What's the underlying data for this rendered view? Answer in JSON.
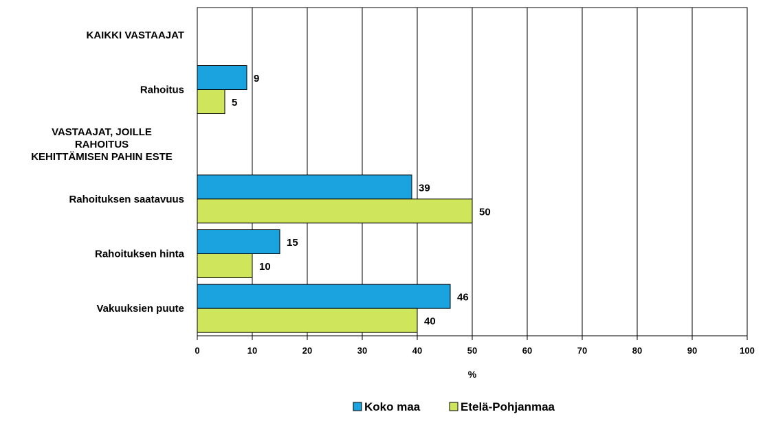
{
  "chart_data": {
    "type": "bar",
    "orientation": "horizontal",
    "categories": [
      "KAIKKI VASTAAJAT",
      "Rahoitus",
      "VASTAAJAT, JOILLE\nRAHOITUS\nKEHITTÄMISEN PAHIN ESTE",
      "Rahoituksen saatavuus",
      "Rahoituksen hinta",
      "Vakuuksien puute"
    ],
    "series": [
      {
        "name": "Koko maa",
        "color": "#1aa3df",
        "values": [
          null,
          9,
          null,
          39,
          15,
          46
        ]
      },
      {
        "name": "Etelä-Pohjanmaa",
        "color": "#cfe65c",
        "values": [
          null,
          5,
          null,
          50,
          10,
          40
        ]
      }
    ],
    "xlabel": "%",
    "xlim": [
      0,
      100
    ],
    "xticks": [
      "0",
      "10",
      "20",
      "30",
      "40",
      "50",
      "60",
      "70",
      "80",
      "90",
      "100"
    ],
    "grid": "vertical",
    "legend": "bottom-center"
  }
}
